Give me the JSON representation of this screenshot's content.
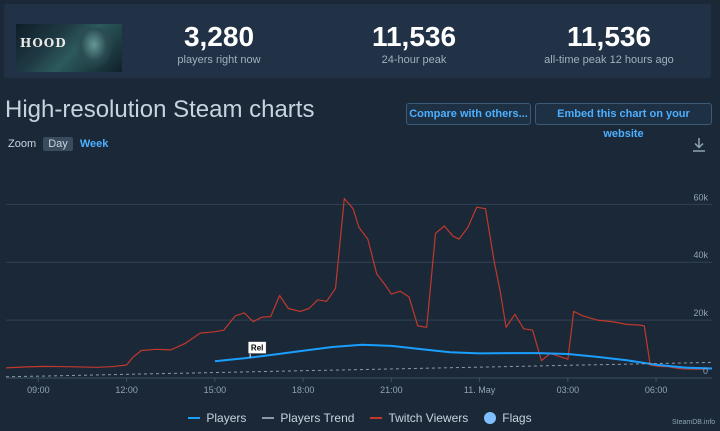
{
  "stats": {
    "game_image_text": "HOOD",
    "players_now": {
      "value": "3,280",
      "label": "players right now"
    },
    "peak_24h": {
      "value": "11,536",
      "label": "24-hour peak"
    },
    "peak_alltime": {
      "value": "11,536",
      "label": "all-time peak 12 hours ago"
    }
  },
  "header": {
    "title": "High-resolution Steam charts",
    "compare_label": "Compare with others...",
    "embed_label": "Embed this chart on your website"
  },
  "zoom": {
    "label": "Zoom",
    "day": "Day",
    "week": "Week"
  },
  "icons": {
    "download": "download-icon"
  },
  "colors": {
    "players": "#1a9fff",
    "twitch": "#c0392b",
    "trend": "#8a9aa8",
    "flags": "#7fbfff",
    "background": "#1b2838"
  },
  "legend": {
    "players": "Players",
    "trend": "Players Trend",
    "twitch": "Twitch Viewers",
    "flags": "Flags"
  },
  "credits": "SteamDB.info",
  "chart_data": {
    "type": "line",
    "title": "",
    "xlabel": "",
    "ylabel": "",
    "x_ticks": [
      "09:00",
      "12:00",
      "15:00",
      "18:00",
      "21:00",
      "11. May",
      "03:00",
      "06:00"
    ],
    "x_tick_hours": [
      9,
      12,
      15,
      18,
      21,
      24,
      27,
      30
    ],
    "xlim": [
      7.9,
      31.9
    ],
    "y_ticks": [
      "0",
      "20k",
      "40k",
      "60k"
    ],
    "y_tick_values": [
      0,
      20000,
      40000,
      60000
    ],
    "ylim": [
      0,
      76000
    ],
    "flag": {
      "label": "Rel",
      "hour": 16.2
    },
    "series": [
      {
        "name": "Twitch Viewers",
        "x": [
          7.9,
          8.5,
          9.2,
          10.0,
          11.0,
          11.5,
          12.0,
          12.2,
          12.5,
          13.0,
          13.5,
          14.0,
          14.5,
          15.0,
          15.3,
          15.7,
          16.0,
          16.3,
          16.6,
          16.9,
          17.2,
          17.5,
          17.9,
          18.2,
          18.5,
          18.8,
          19.1,
          19.4,
          19.7,
          19.9,
          20.2,
          20.5,
          20.8,
          21.0,
          21.3,
          21.6,
          21.9,
          22.2,
          22.5,
          22.8,
          23.1,
          23.3,
          23.6,
          23.9,
          24.2,
          24.5,
          24.7,
          24.9,
          25.2,
          25.5,
          25.8,
          26.1,
          26.4,
          26.7,
          27.0,
          27.2,
          27.5,
          28.0,
          28.5,
          29.0,
          29.4,
          29.6,
          29.8,
          30.1,
          30.4,
          30.8,
          31.4,
          31.9
        ],
        "values": [
          3500,
          3800,
          4000,
          3900,
          3700,
          3900,
          4500,
          7000,
          9500,
          9900,
          9700,
          12000,
          15500,
          16000,
          16500,
          21500,
          22500,
          19500,
          21000,
          21200,
          28500,
          24000,
          23000,
          24000,
          27000,
          26500,
          31000,
          62000,
          58500,
          52000,
          48000,
          36000,
          32000,
          29000,
          30000,
          28000,
          18000,
          17500,
          50000,
          52500,
          49000,
          48000,
          52000,
          59000,
          58500,
          40000,
          30000,
          17500,
          22000,
          17000,
          16500,
          6000,
          8500,
          7500,
          6500,
          23000,
          21500,
          20000,
          19500,
          18500,
          18300,
          18000,
          4500,
          4000,
          3900,
          3200,
          3000,
          3200
        ]
      },
      {
        "name": "Players",
        "x": [
          15.0,
          16.0,
          17.0,
          18.0,
          19.0,
          20.0,
          21.0,
          22.0,
          23.0,
          24.0,
          25.0,
          26.0,
          27.0,
          28.0,
          29.0,
          30.0,
          31.0,
          31.9
        ],
        "values": [
          5800,
          6800,
          8100,
          9400,
          10700,
          11500,
          11100,
          10000,
          8900,
          8500,
          8600,
          8600,
          8300,
          7300,
          6100,
          4600,
          3600,
          3280
        ]
      },
      {
        "name": "Players Trend",
        "x": [
          7.9,
          31.9
        ],
        "values": [
          400,
          5400
        ]
      }
    ]
  }
}
